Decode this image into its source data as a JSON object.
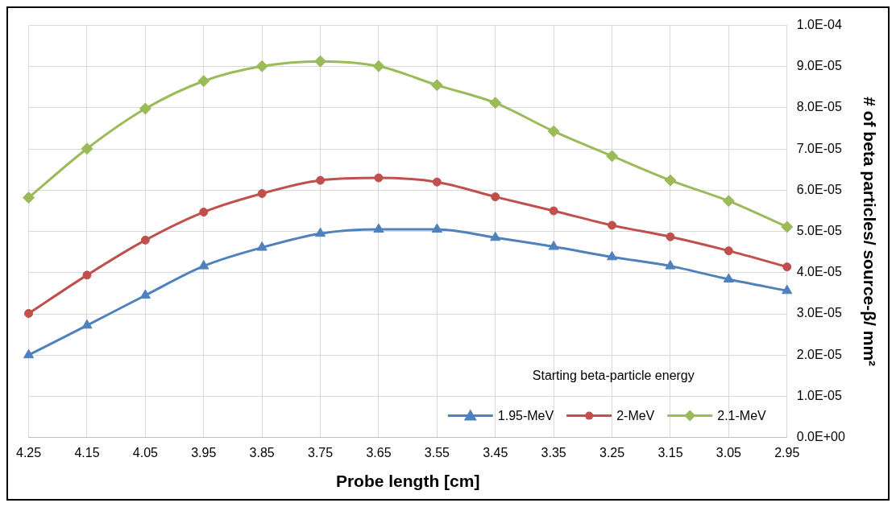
{
  "chart_data": {
    "type": "line",
    "xlabel": "Probe length [cm]",
    "ylabel": "# of beta particles/ source-β/ mm²",
    "legend_title": "Starting beta-particle energy",
    "legend": "bottom right",
    "categories": [
      "4.25",
      "4.15",
      "4.05",
      "3.95",
      "3.85",
      "3.75",
      "3.65",
      "3.55",
      "3.45",
      "3.35",
      "3.25",
      "3.15",
      "3.05",
      "2.95"
    ],
    "series": [
      {
        "name": "1.95-MeV",
        "color": "#4f81bd",
        "marker": "triangle",
        "values": [
          2e-05,
          2.72e-05,
          3.45e-05,
          4.16e-05,
          4.61e-05,
          4.95e-05,
          5.05e-05,
          5.05e-05,
          4.85e-05,
          4.63e-05,
          4.38e-05,
          4.16e-05,
          3.84e-05,
          3.56e-05
        ]
      },
      {
        "name": "2-MeV",
        "color": "#c0504d",
        "marker": "circle",
        "values": [
          3.01e-05,
          3.94e-05,
          4.79e-05,
          5.47e-05,
          5.92e-05,
          6.24e-05,
          6.3e-05,
          6.2e-05,
          5.84e-05,
          5.5e-05,
          5.15e-05,
          4.87e-05,
          4.53e-05,
          4.14e-05
        ]
      },
      {
        "name": "2.1-MeV",
        "color": "#9bbb59",
        "marker": "diamond",
        "values": [
          5.82e-05,
          7.01e-05,
          7.98e-05,
          8.65e-05,
          9.01e-05,
          9.13e-05,
          9.01e-05,
          8.55e-05,
          8.12e-05,
          7.43e-05,
          6.83e-05,
          6.24e-05,
          5.74e-05,
          5.11e-05
        ]
      }
    ],
    "ylim": [
      0,
      0.0001
    ],
    "yticks": [
      {
        "value": 0,
        "label": "0.0E+00"
      },
      {
        "value": 1e-05,
        "label": "1.0E-05"
      },
      {
        "value": 2e-05,
        "label": "2.0E-05"
      },
      {
        "value": 3e-05,
        "label": "3.0E-05"
      },
      {
        "value": 4e-05,
        "label": "4.0E-05"
      },
      {
        "value": 5e-05,
        "label": "5.0E-05"
      },
      {
        "value": 6e-05,
        "label": "6.0E-05"
      },
      {
        "value": 7e-05,
        "label": "7.0E-05"
      },
      {
        "value": 8e-05,
        "label": "8.0E-05"
      },
      {
        "value": 9e-05,
        "label": "9.0E-05"
      },
      {
        "value": 0.0001,
        "label": "1.0E-04"
      }
    ],
    "grid": true
  }
}
